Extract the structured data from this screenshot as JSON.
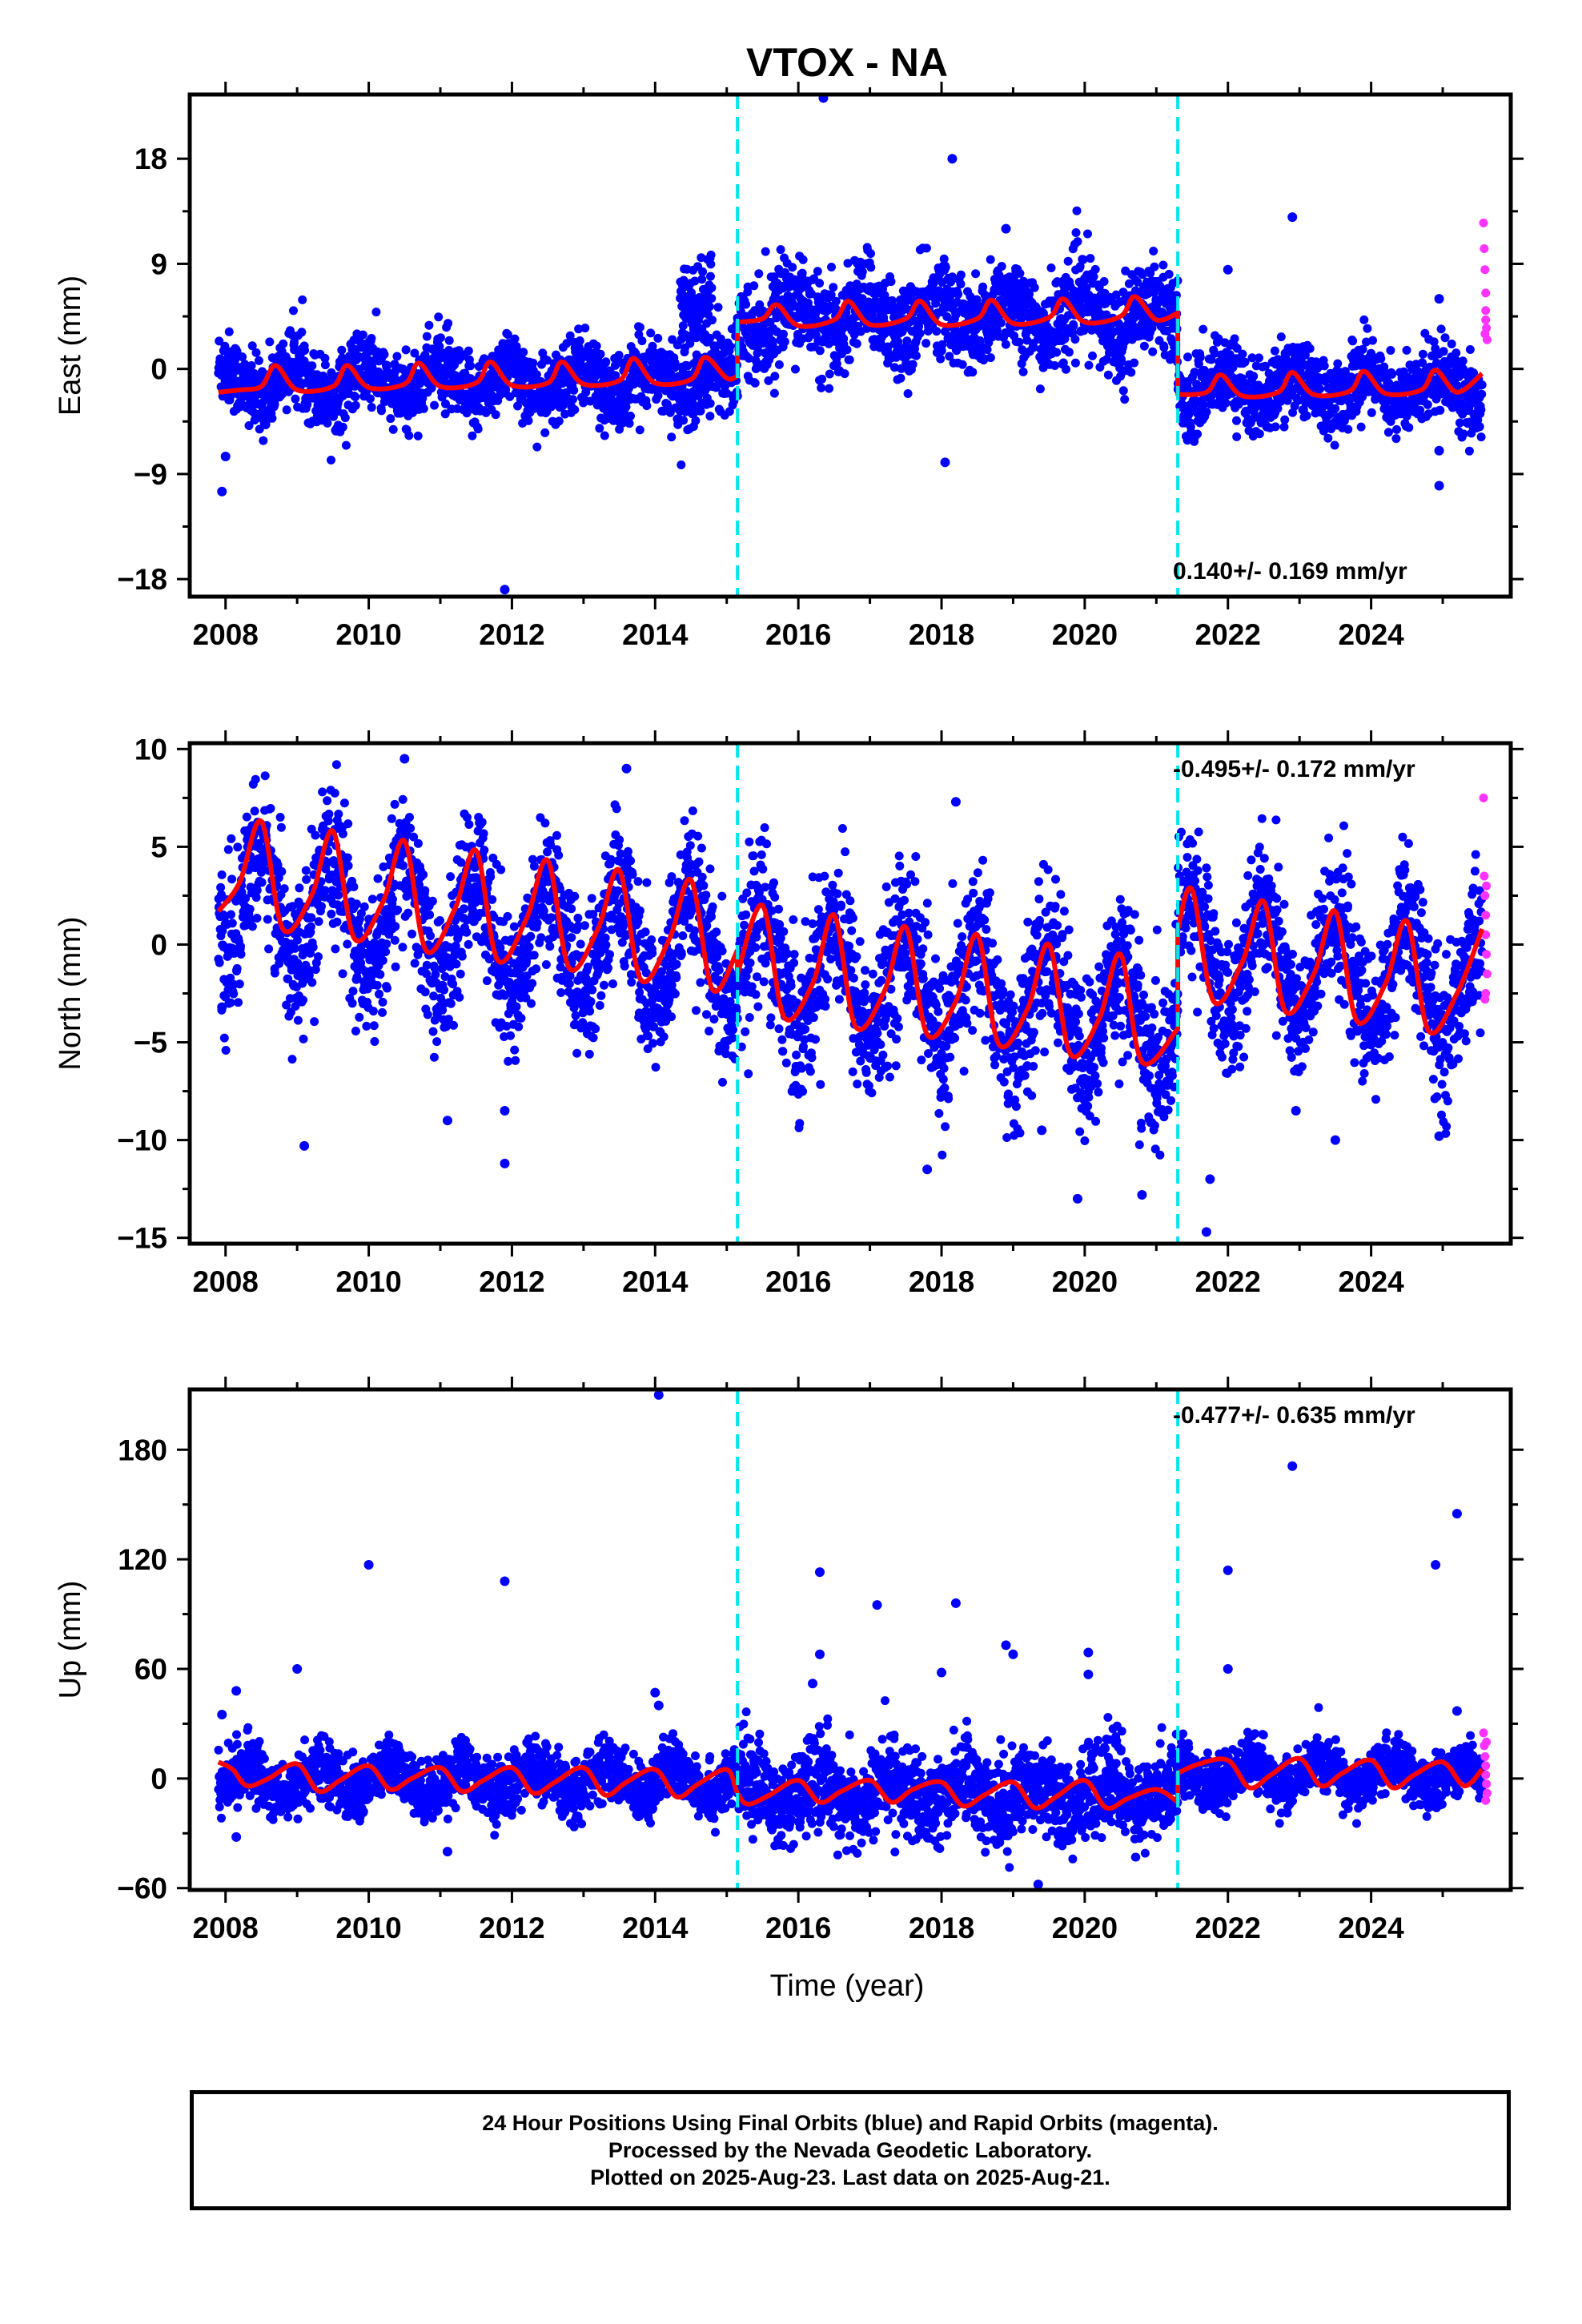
{
  "title": "VTOX - NA",
  "xlabel": "Time (year)",
  "caption": [
    "24 Hour Positions Using Final Orbits (blue) and Rapid Orbits (magenta).",
    "Processed by the Nevada Geodetic Laboratory.",
    "Plotted on 2025-Aug-23. Last data on 2025-Aug-21."
  ],
  "colors": {
    "final": "#0000ff",
    "rapid": "#ff33ff",
    "model": "#ff0000",
    "break": "#00e5ee"
  },
  "chart_data": [
    {
      "type": "scatter",
      "ylabel": "East (mm)",
      "xlim": [
        2007.5,
        2025.95
      ],
      "ylim": [
        -19.5,
        23.5
      ],
      "xticks": [
        2008,
        2010,
        2012,
        2014,
        2016,
        2018,
        2020,
        2022,
        2024
      ],
      "yticks": [
        -18,
        -9,
        0,
        9,
        18
      ],
      "ytick_labels": [
        "−18",
        "−9",
        "0",
        "9",
        "18"
      ],
      "rate_label": "0.140+/- 0.169 mm/yr",
      "rate_pos": "bottom-right",
      "breaks": [
        2015.15,
        2021.3
      ],
      "model": [
        [
          2007.9,
          -2.0
        ],
        [
          2008.2,
          -1.8
        ],
        [
          2008.5,
          -1.5
        ],
        [
          2008.7,
          0.3
        ],
        [
          2009.0,
          -1.8
        ],
        [
          2009.5,
          -1.5
        ],
        [
          2009.7,
          0.3
        ],
        [
          2010.0,
          -1.6
        ],
        [
          2010.5,
          -1.3
        ],
        [
          2010.7,
          0.5
        ],
        [
          2011.0,
          -1.5
        ],
        [
          2011.5,
          -1.2
        ],
        [
          2011.7,
          0.6
        ],
        [
          2012.0,
          -1.4
        ],
        [
          2012.5,
          -1.2
        ],
        [
          2012.7,
          0.6
        ],
        [
          2013.0,
          -1.3
        ],
        [
          2013.5,
          -1.0
        ],
        [
          2013.7,
          0.9
        ],
        [
          2014.0,
          -1.2
        ],
        [
          2014.5,
          -0.9
        ],
        [
          2014.7,
          1.0
        ],
        [
          2015.0,
          -0.8
        ],
        [
          2015.15,
          -0.6
        ],
        [
          2015.15,
          4.0
        ],
        [
          2015.5,
          4.3
        ],
        [
          2015.7,
          5.5
        ],
        [
          2016.0,
          3.7
        ],
        [
          2016.5,
          4.2
        ],
        [
          2016.7,
          5.8
        ],
        [
          2017.0,
          3.8
        ],
        [
          2017.5,
          4.3
        ],
        [
          2017.7,
          5.8
        ],
        [
          2018.0,
          3.8
        ],
        [
          2018.5,
          4.3
        ],
        [
          2018.7,
          5.9
        ],
        [
          2019.0,
          3.9
        ],
        [
          2019.5,
          4.4
        ],
        [
          2019.7,
          6.0
        ],
        [
          2020.0,
          4.0
        ],
        [
          2020.5,
          4.5
        ],
        [
          2020.7,
          6.2
        ],
        [
          2021.0,
          4.2
        ],
        [
          2021.3,
          4.8
        ],
        [
          2021.3,
          -2.2
        ],
        [
          2021.7,
          -2.0
        ],
        [
          2021.9,
          -0.5
        ],
        [
          2022.2,
          -2.3
        ],
        [
          2022.7,
          -2.0
        ],
        [
          2022.9,
          -0.3
        ],
        [
          2023.2,
          -2.2
        ],
        [
          2023.7,
          -1.9
        ],
        [
          2023.9,
          -0.2
        ],
        [
          2024.2,
          -2.1
        ],
        [
          2024.7,
          -1.8
        ],
        [
          2024.9,
          -0.1
        ],
        [
          2025.2,
          -2.0
        ],
        [
          2025.55,
          -0.4
        ]
      ],
      "segments": [
        {
          "start": 2007.9,
          "end": 2015.15,
          "base": -1.1,
          "amp": 1.3,
          "noise": 1.6,
          "phase": 0.7
        },
        {
          "start": 2014.35,
          "end": 2014.8,
          "base": 6.0,
          "amp": 1.0,
          "noise": 2.0,
          "phase": 0.7
        },
        {
          "start": 2015.15,
          "end": 2021.3,
          "base": 4.5,
          "amp": 1.5,
          "noise": 2.0,
          "phase": 0.7
        },
        {
          "start": 2021.3,
          "end": 2025.55,
          "base": -1.5,
          "amp": 1.3,
          "noise": 1.6,
          "phase": 0.7
        }
      ],
      "outliers": [
        [
          2007.95,
          -10.5
        ],
        [
          2008.0,
          -7.5
        ],
        [
          2011.9,
          -18.9
        ],
        [
          2016.35,
          23.2
        ],
        [
          2018.15,
          18.0
        ],
        [
          2018.05,
          -8.0
        ],
        [
          2018.9,
          12.0
        ],
        [
          2022.9,
          13.0
        ],
        [
          2022.0,
          8.5
        ],
        [
          2024.95,
          -10.0
        ],
        [
          2024.95,
          -7.0
        ],
        [
          2024.95,
          6.0
        ]
      ],
      "rapid": [
        [
          2025.57,
          12.5
        ],
        [
          2025.58,
          10.3
        ],
        [
          2025.59,
          8.5
        ],
        [
          2025.6,
          6.5
        ],
        [
          2025.6,
          5.0
        ],
        [
          2025.61,
          3.5
        ],
        [
          2025.62,
          2.5
        ],
        [
          2025.6,
          4.2
        ],
        [
          2025.59,
          3.0
        ]
      ]
    },
    {
      "type": "scatter",
      "ylabel": "North (mm)",
      "xlim": [
        2007.5,
        2025.95
      ],
      "ylim": [
        -15.3,
        10.3
      ],
      "xticks": [
        2008,
        2010,
        2012,
        2014,
        2016,
        2018,
        2020,
        2022,
        2024
      ],
      "yticks": [
        -15,
        -10,
        -5,
        0,
        5,
        10
      ],
      "ytick_labels": [
        "−15",
        "−10",
        "−5",
        "0",
        "5",
        "10"
      ],
      "rate_label": "-0.495+/- 0.172 mm/yr",
      "rate_pos": "top-right",
      "breaks": [
        2015.15,
        2021.3
      ],
      "model": [
        [
          2007.9,
          1.7
        ],
        [
          2008.2,
          3.2
        ],
        [
          2008.5,
          6.3
        ],
        [
          2008.8,
          0.8
        ],
        [
          2009.2,
          2.5
        ],
        [
          2009.5,
          5.8
        ],
        [
          2009.8,
          0.3
        ],
        [
          2010.2,
          2.2
        ],
        [
          2010.5,
          5.3
        ],
        [
          2010.8,
          -0.3
        ],
        [
          2011.2,
          1.8
        ],
        [
          2011.5,
          4.8
        ],
        [
          2011.8,
          -0.8
        ],
        [
          2012.2,
          1.3
        ],
        [
          2012.5,
          4.3
        ],
        [
          2012.8,
          -1.2
        ],
        [
          2013.2,
          0.8
        ],
        [
          2013.5,
          3.8
        ],
        [
          2013.8,
          -1.8
        ],
        [
          2014.2,
          0.3
        ],
        [
          2014.5,
          3.3
        ],
        [
          2014.8,
          -2.3
        ],
        [
          2015.15,
          -0.3
        ],
        [
          2015.15,
          -1.5
        ],
        [
          2015.5,
          2.0
        ],
        [
          2015.8,
          -3.7
        ],
        [
          2016.2,
          -2.0
        ],
        [
          2016.5,
          1.5
        ],
        [
          2016.8,
          -4.2
        ],
        [
          2017.2,
          -2.4
        ],
        [
          2017.5,
          0.9
        ],
        [
          2017.8,
          -4.6
        ],
        [
          2018.2,
          -2.9
        ],
        [
          2018.5,
          0.5
        ],
        [
          2018.8,
          -5.1
        ],
        [
          2019.2,
          -3.3
        ],
        [
          2019.5,
          0.0
        ],
        [
          2019.8,
          -5.6
        ],
        [
          2020.2,
          -3.8
        ],
        [
          2020.5,
          -0.5
        ],
        [
          2020.8,
          -6.0
        ],
        [
          2021.3,
          -4.3
        ],
        [
          2021.3,
          0.8
        ],
        [
          2021.5,
          2.8
        ],
        [
          2021.8,
          -2.9
        ],
        [
          2022.2,
          -0.9
        ],
        [
          2022.5,
          2.2
        ],
        [
          2022.8,
          -3.4
        ],
        [
          2023.2,
          -1.5
        ],
        [
          2023.5,
          1.7
        ],
        [
          2023.8,
          -3.9
        ],
        [
          2024.2,
          -2.0
        ],
        [
          2024.5,
          1.2
        ],
        [
          2024.8,
          -4.4
        ],
        [
          2025.2,
          -2.5
        ],
        [
          2025.55,
          0.8
        ]
      ],
      "segments": [
        {
          "start": 2007.9,
          "end": 2015.15,
          "base": 2.2,
          "slope": -0.4,
          "amp": 2.8,
          "noise": 1.8,
          "phase": 0.25
        },
        {
          "start": 2015.15,
          "end": 2021.3,
          "base": -0.8,
          "slope": -0.55,
          "amp": 2.8,
          "noise": 2.0,
          "phase": 0.25
        },
        {
          "start": 2021.3,
          "end": 2025.55,
          "base": -0.2,
          "slope": -0.5,
          "amp": 2.8,
          "noise": 1.8,
          "phase": 0.25
        }
      ],
      "outliers": [
        [
          2007.95,
          -3.2
        ],
        [
          2009.1,
          -10.3
        ],
        [
          2011.1,
          -9.0
        ],
        [
          2011.9,
          -11.2
        ],
        [
          2011.9,
          -8.5
        ],
        [
          2010.5,
          9.5
        ],
        [
          2013.6,
          9.0
        ],
        [
          2018.2,
          7.3
        ],
        [
          2017.8,
          -11.5
        ],
        [
          2019.9,
          -13.0
        ],
        [
          2020.8,
          -12.8
        ],
        [
          2021.7,
          -14.7
        ],
        [
          2021.75,
          -12.0
        ],
        [
          2022.95,
          -8.5
        ],
        [
          2023.5,
          -10.0
        ],
        [
          2024.95,
          -9.8
        ],
        [
          2019.4,
          -9.5
        ]
      ],
      "rapid": [
        [
          2025.57,
          7.5
        ],
        [
          2025.58,
          3.5
        ],
        [
          2025.59,
          2.5
        ],
        [
          2025.6,
          1.5
        ],
        [
          2025.6,
          0.5
        ],
        [
          2025.61,
          -0.5
        ],
        [
          2025.62,
          -1.5
        ],
        [
          2025.6,
          -2.5
        ],
        [
          2025.59,
          -2.8
        ],
        [
          2025.61,
          3.0
        ]
      ]
    },
    {
      "type": "scatter",
      "ylabel": "Up (mm)",
      "xlim": [
        2007.5,
        2025.95
      ],
      "ylim": [
        -61,
        213
      ],
      "xticks": [
        2008,
        2010,
        2012,
        2014,
        2016,
        2018,
        2020,
        2022,
        2024
      ],
      "yticks": [
        -60,
        0,
        60,
        120,
        180
      ],
      "ytick_labels": [
        "−60",
        "0",
        "60",
        "120",
        "180"
      ],
      "rate_label": "-0.477+/- 0.635 mm/yr",
      "rate_pos": "top-right",
      "breaks": [
        2015.15,
        2021.3
      ],
      "model": [
        [
          2007.9,
          9
        ],
        [
          2008.1,
          5
        ],
        [
          2008.3,
          -4
        ],
        [
          2008.6,
          0
        ],
        [
          2009.0,
          8
        ],
        [
          2009.3,
          -7
        ],
        [
          2009.6,
          -1
        ],
        [
          2010.0,
          7
        ],
        [
          2010.3,
          -6
        ],
        [
          2010.6,
          0
        ],
        [
          2011.0,
          6
        ],
        [
          2011.3,
          -7
        ],
        [
          2011.6,
          -1
        ],
        [
          2012.0,
          6
        ],
        [
          2012.3,
          -8
        ],
        [
          2012.6,
          -2
        ],
        [
          2013.0,
          6
        ],
        [
          2013.3,
          -9
        ],
        [
          2013.6,
          -2
        ],
        [
          2014.0,
          5
        ],
        [
          2014.3,
          -10
        ],
        [
          2014.6,
          -3
        ],
        [
          2015.0,
          5
        ],
        [
          2015.15,
          -8
        ],
        [
          2015.3,
          -14
        ],
        [
          2015.6,
          -9
        ],
        [
          2016.0,
          -1
        ],
        [
          2016.3,
          -13
        ],
        [
          2016.6,
          -7
        ],
        [
          2017.0,
          -1
        ],
        [
          2017.3,
          -13
        ],
        [
          2017.6,
          -6
        ],
        [
          2018.0,
          -2
        ],
        [
          2018.3,
          -15
        ],
        [
          2018.6,
          -9
        ],
        [
          2019.0,
          -2
        ],
        [
          2019.3,
          -16
        ],
        [
          2019.6,
          -10
        ],
        [
          2020.0,
          -1
        ],
        [
          2020.3,
          -16
        ],
        [
          2020.6,
          -11
        ],
        [
          2021.0,
          -6
        ],
        [
          2021.3,
          -13
        ],
        [
          2021.3,
          3
        ],
        [
          2021.6,
          8
        ],
        [
          2022.0,
          10
        ],
        [
          2022.3,
          -5
        ],
        [
          2022.6,
          2
        ],
        [
          2023.0,
          11
        ],
        [
          2023.3,
          -4
        ],
        [
          2023.6,
          3
        ],
        [
          2024.0,
          10
        ],
        [
          2024.3,
          -5
        ],
        [
          2024.6,
          2
        ],
        [
          2025.0,
          9
        ],
        [
          2025.3,
          -4
        ],
        [
          2025.55,
          5
        ]
      ],
      "segments": [
        {
          "start": 2007.9,
          "end": 2015.15,
          "base": -1,
          "amp": 7,
          "noise": 8,
          "phase": 0.05
        },
        {
          "start": 2015.15,
          "end": 2021.3,
          "base": -8,
          "amp": 9,
          "noise": 12,
          "phase": 0.05
        },
        {
          "start": 2021.3,
          "end": 2025.55,
          "base": 2,
          "amp": 7,
          "noise": 7,
          "phase": 0.05
        }
      ],
      "outliers": [
        [
          2007.95,
          35
        ],
        [
          2008.15,
          48
        ],
        [
          2009.0,
          60
        ],
        [
          2010.0,
          117
        ],
        [
          2011.9,
          108
        ],
        [
          2014.05,
          210
        ],
        [
          2014.0,
          47
        ],
        [
          2014.05,
          40
        ],
        [
          2016.3,
          113
        ],
        [
          2016.3,
          68
        ],
        [
          2017.1,
          95
        ],
        [
          2018.2,
          96
        ],
        [
          2018.0,
          58
        ],
        [
          2018.9,
          73
        ],
        [
          2019.0,
          68
        ],
        [
          2020.05,
          69
        ],
        [
          2020.05,
          57
        ],
        [
          2022.0,
          114
        ],
        [
          2022.0,
          60
        ],
        [
          2022.9,
          171
        ],
        [
          2024.9,
          117
        ],
        [
          2025.2,
          145
        ],
        [
          2025.2,
          37
        ],
        [
          2019.35,
          -58
        ],
        [
          2008.15,
          -32
        ],
        [
          2011.1,
          -40
        ],
        [
          2016.2,
          52
        ]
      ],
      "rapid": [
        [
          2025.57,
          25
        ],
        [
          2025.58,
          18
        ],
        [
          2025.59,
          12
        ],
        [
          2025.6,
          7
        ],
        [
          2025.6,
          2
        ],
        [
          2025.61,
          -3
        ],
        [
          2025.62,
          -8
        ],
        [
          2025.6,
          -12
        ],
        [
          2025.61,
          20
        ]
      ]
    }
  ]
}
